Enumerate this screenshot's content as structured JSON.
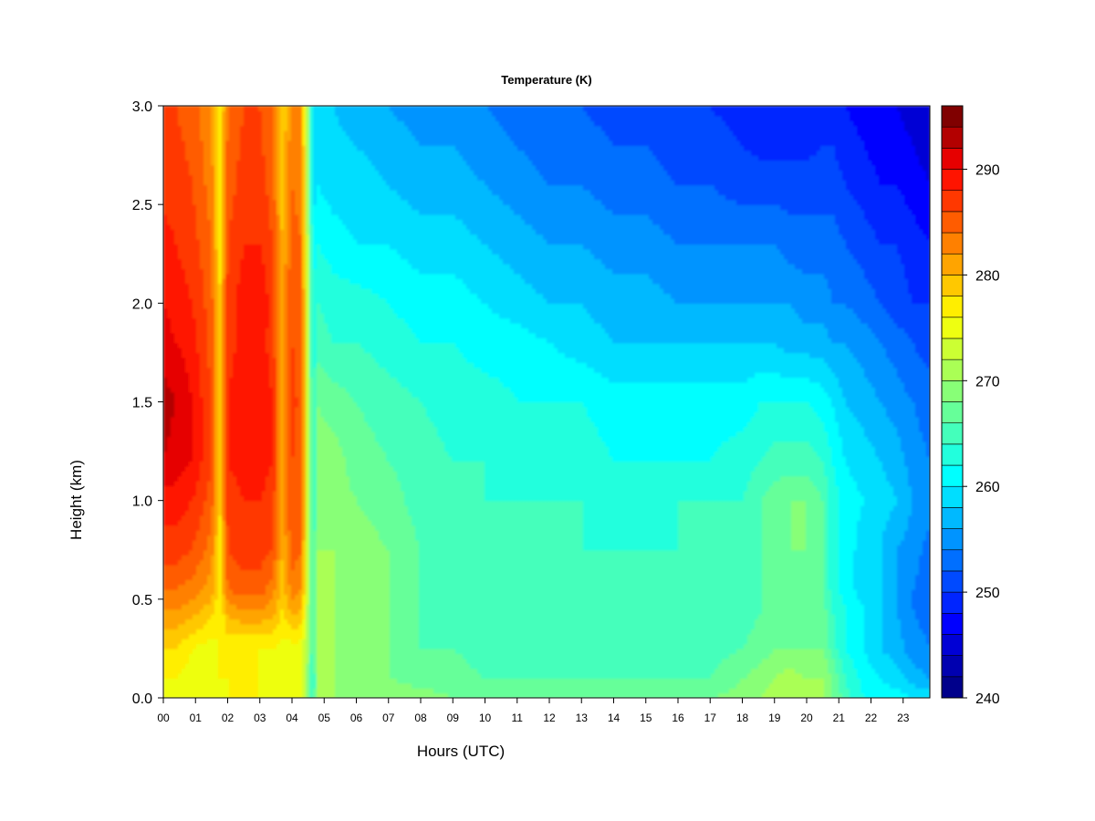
{
  "chart_data": {
    "type": "heatmap",
    "title": "Temperature (K)",
    "xlabel": "Hours (UTC)",
    "ylabel": "Height (km)",
    "xlim": [
      0,
      23.83
    ],
    "ylim": [
      0,
      3.0
    ],
    "x_tick_labels": [
      "00",
      "01",
      "02",
      "03",
      "04",
      "05",
      "06",
      "07",
      "08",
      "09",
      "10",
      "11",
      "12",
      "13",
      "14",
      "15",
      "16",
      "17",
      "18",
      "19",
      "20",
      "21",
      "22",
      "23"
    ],
    "y_tick_labels": [
      "0.0",
      "0.5",
      "1.0",
      "1.5",
      "2.0",
      "2.5",
      "3.0"
    ],
    "y_ticks": [
      0.0,
      0.5,
      1.0,
      1.5,
      2.0,
      2.5,
      3.0
    ],
    "heights_km": [
      0.0,
      0.1,
      0.25,
      0.45,
      0.55,
      0.75,
      1.0,
      1.2,
      1.5,
      1.8,
      2.0,
      2.3,
      2.6,
      3.0
    ],
    "hours_utc": [
      0.0,
      0.4,
      0.9,
      1.5,
      1.75,
      2.0,
      2.5,
      3.0,
      3.4,
      3.7,
      4.0,
      4.3,
      4.5,
      4.65,
      4.8,
      5.3,
      6.0,
      7.0,
      8.0,
      9.0,
      10.0,
      11.0,
      12.0,
      13.0,
      14.0,
      15.0,
      16.0,
      17.0,
      18.0,
      18.6,
      19.0,
      19.5,
      20.0,
      20.5,
      20.8,
      21.2,
      21.8,
      22.3,
      22.8,
      23.3,
      23.83
    ],
    "temperature_K": [
      [
        276,
        275,
        275,
        274,
        275,
        276,
        276,
        276,
        276,
        275,
        276,
        274,
        269,
        263,
        271,
        270,
        270,
        270,
        269,
        268,
        268,
        268,
        268,
        268,
        267,
        267,
        268,
        268,
        269,
        270,
        271,
        270,
        270,
        270,
        268,
        265,
        262,
        261,
        261,
        260,
        260
      ],
      [
        276,
        276,
        275,
        275,
        276,
        276,
        276,
        276,
        275,
        275,
        275,
        274,
        269,
        263,
        270,
        270,
        269,
        268,
        267,
        267,
        266,
        266,
        266,
        266,
        266,
        266,
        266,
        266,
        268,
        269,
        270,
        271,
        270,
        270,
        268,
        264,
        261,
        260,
        259,
        257,
        256
      ],
      [
        278,
        278,
        276,
        275,
        276,
        276,
        276,
        276,
        276,
        275,
        275,
        275,
        270,
        264,
        271,
        270,
        269,
        268,
        266,
        266,
        265,
        265,
        265,
        265,
        265,
        265,
        265,
        265,
        266,
        267,
        268,
        268,
        268,
        268,
        265,
        262,
        260,
        258,
        257,
        255,
        254
      ],
      [
        282,
        282,
        281,
        279,
        276,
        281,
        282,
        282,
        281,
        278,
        281,
        280,
        271,
        264,
        271,
        270,
        269,
        268,
        266,
        265,
        265,
        264,
        264,
        264,
        264,
        264,
        264,
        264,
        265,
        266,
        267,
        267,
        267,
        267,
        264,
        262,
        260,
        258,
        256,
        254,
        253
      ],
      [
        284,
        284,
        283,
        281,
        277,
        284,
        285,
        285,
        283,
        279,
        283,
        282,
        272,
        264,
        270,
        270,
        269,
        268,
        266,
        265,
        264,
        264,
        264,
        264,
        264,
        264,
        264,
        264,
        265,
        266,
        267,
        267,
        267,
        266,
        263,
        261,
        259,
        258,
        256,
        254,
        253
      ],
      [
        287,
        287,
        286,
        283,
        277,
        286,
        287,
        287,
        286,
        280,
        285,
        284,
        272,
        264,
        270,
        270,
        269,
        268,
        266,
        265,
        264,
        264,
        264,
        264,
        264,
        264,
        264,
        264,
        265,
        266,
        267,
        268,
        268,
        266,
        263,
        261,
        259,
        258,
        256,
        255,
        253
      ],
      [
        289,
        289,
        288,
        285,
        278,
        287,
        288,
        288,
        287,
        281,
        286,
        285,
        272,
        263,
        269,
        269,
        268,
        267,
        265,
        264,
        264,
        264,
        264,
        264,
        263,
        263,
        264,
        264,
        264,
        266,
        267,
        268,
        268,
        266,
        263,
        261,
        260,
        259,
        258,
        256,
        255
      ],
      [
        292,
        291,
        290,
        286,
        278,
        288,
        289,
        289,
        288,
        281,
        286,
        285,
        272,
        263,
        269,
        269,
        267,
        266,
        265,
        264,
        264,
        263,
        263,
        263,
        262,
        262,
        262,
        262,
        263,
        264,
        265,
        265,
        265,
        264,
        262,
        260,
        259,
        258,
        257,
        255,
        254
      ],
      [
        293,
        292,
        290,
        286,
        278,
        288,
        290,
        290,
        288,
        281,
        287,
        285,
        272,
        263,
        268,
        267,
        266,
        265,
        264,
        263,
        263,
        262,
        262,
        262,
        261,
        261,
        261,
        261,
        261,
        262,
        262,
        262,
        262,
        261,
        260,
        258,
        257,
        256,
        255,
        254,
        253
      ],
      [
        291,
        290,
        289,
        285,
        278,
        287,
        289,
        289,
        287,
        281,
        286,
        285,
        272,
        262,
        265,
        264,
        264,
        263,
        262,
        262,
        261,
        261,
        260,
        259,
        258,
        258,
        258,
        258,
        258,
        258,
        258,
        257,
        257,
        257,
        256,
        256,
        255,
        254,
        253,
        252,
        251
      ],
      [
        290,
        289,
        288,
        285,
        278,
        287,
        289,
        290,
        287,
        281,
        286,
        285,
        271,
        262,
        264,
        263,
        263,
        262,
        261,
        261,
        260,
        259,
        258,
        258,
        257,
        257,
        256,
        256,
        256,
        256,
        256,
        256,
        255,
        255,
        254,
        254,
        253,
        252,
        251,
        250,
        250
      ],
      [
        289,
        288,
        287,
        284,
        277,
        286,
        288,
        288,
        286,
        280,
        285,
        284,
        271,
        261,
        262,
        261,
        260,
        260,
        259,
        259,
        258,
        257,
        256,
        256,
        255,
        255,
        254,
        254,
        254,
        254,
        254,
        253,
        253,
        253,
        253,
        252,
        251,
        250,
        250,
        249,
        248
      ],
      [
        287,
        287,
        286,
        283,
        277,
        285,
        287,
        287,
        285,
        279,
        284,
        283,
        270,
        259,
        260,
        259,
        259,
        258,
        257,
        257,
        256,
        255,
        254,
        254,
        253,
        253,
        252,
        252,
        251,
        251,
        251,
        251,
        251,
        251,
        251,
        250,
        249,
        248,
        248,
        247,
        246
      ],
      [
        286,
        286,
        285,
        282,
        276,
        284,
        286,
        286,
        284,
        278,
        283,
        282,
        269,
        258,
        258,
        258,
        257,
        256,
        255,
        255,
        254,
        253,
        252,
        252,
        251,
        251,
        250,
        250,
        249,
        248,
        248,
        248,
        248,
        249,
        249,
        248,
        247,
        246,
        246,
        245,
        244
      ]
    ],
    "colorbar": {
      "min": 240,
      "max": 296,
      "levels": 28,
      "tick_values": [
        240,
        250,
        260,
        270,
        280,
        290
      ],
      "tick_labels": [
        "240",
        "250",
        "260",
        "270",
        "280",
        "290"
      ],
      "colors": [
        "#00008b",
        "#0000b0",
        "#0000d5",
        "#0000ff",
        "#0025ff",
        "#004aff",
        "#006fff",
        "#0094ff",
        "#00b9ff",
        "#00deff",
        "#00ffff",
        "#22ffdd",
        "#44ffbb",
        "#66ff99",
        "#88ff77",
        "#aaff55",
        "#ccff33",
        "#eeff11",
        "#ffee00",
        "#ffc800",
        "#ffa400",
        "#ff8000",
        "#ff5c00",
        "#ff3800",
        "#ff1400",
        "#e60000",
        "#b30000",
        "#800000"
      ]
    }
  }
}
